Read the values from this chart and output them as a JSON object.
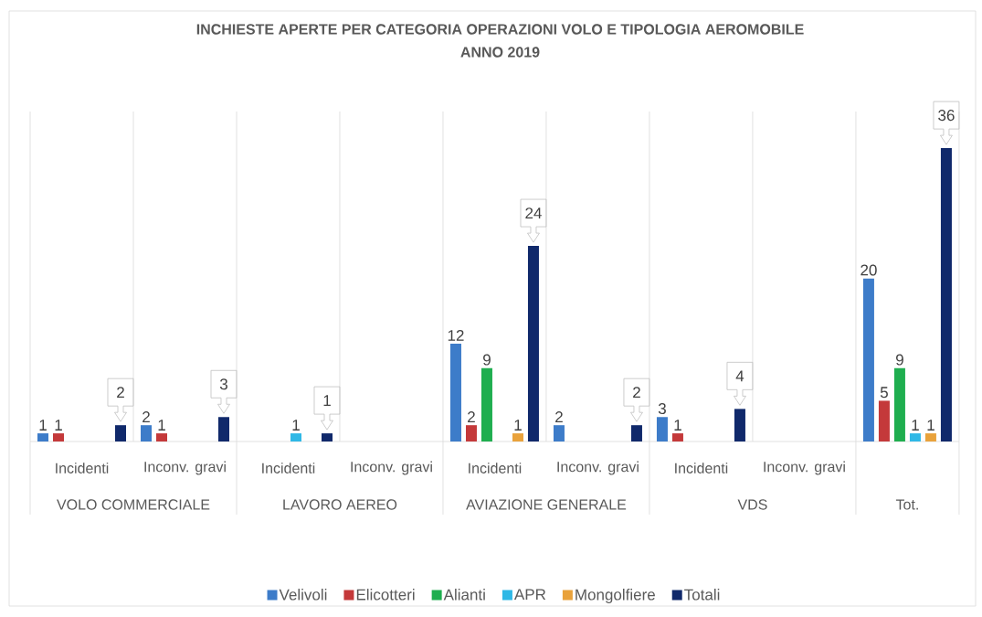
{
  "chart_data": {
    "type": "bar",
    "title": "INCHIESTE APERTE PER CATEGORIA OPERAZIONI VOLO E TIPOLOGIA AEROMOBILE",
    "subtitle": "ANNO 2019",
    "categories": [
      "Incidenti",
      "Inconv. gravi",
      "Incidenti",
      "Inconv. gravi",
      "Incidenti",
      "Inconv. gravi",
      "Incidenti",
      "Inconv. gravi",
      null
    ],
    "annotations": [
      "VOLO COMMERCIALE",
      "LAVORO AEREO",
      "AVIAZIONE GENERALE",
      "VDS",
      "Tot."
    ],
    "series": [
      {
        "name": "Velivoli",
        "color": "#3d7cc9",
        "values": [
          1,
          2,
          null,
          null,
          12,
          2,
          3,
          null,
          20
        ]
      },
      {
        "name": "Elicotteri",
        "color": "#c4393a",
        "values": [
          1,
          1,
          null,
          null,
          2,
          null,
          1,
          null,
          5
        ]
      },
      {
        "name": "Alianti",
        "color": "#1fae4f",
        "values": [
          null,
          null,
          null,
          null,
          9,
          null,
          null,
          null,
          9
        ]
      },
      {
        "name": "APR",
        "color": "#2fb8e6",
        "values": [
          null,
          null,
          1,
          null,
          null,
          null,
          null,
          null,
          1
        ]
      },
      {
        "name": "Mongolfiere",
        "color": "#e9a23b",
        "values": [
          null,
          null,
          null,
          null,
          1,
          null,
          null,
          null,
          1
        ]
      },
      {
        "name": "Totali",
        "color": "#10296b",
        "values": [
          2,
          3,
          1,
          null,
          24,
          2,
          4,
          null,
          36
        ]
      }
    ],
    "data_labels": true,
    "grid": "x",
    "legend": "bottom",
    "tick_labels": "x"
  }
}
